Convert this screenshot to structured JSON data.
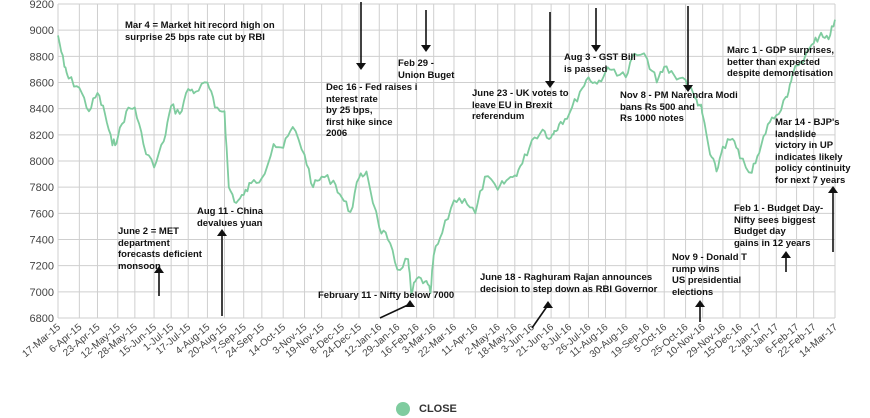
{
  "chart_data": {
    "type": "line",
    "title": "",
    "xlabel": "",
    "ylabel": "",
    "ylim": [
      6800,
      9200
    ],
    "yticks": [
      6800,
      7000,
      7200,
      7400,
      7600,
      7800,
      8000,
      8200,
      8400,
      8600,
      8800,
      9000,
      9200
    ],
    "grid": true,
    "legend_position": "bottom-center",
    "colors": {
      "line": "#7fcc9f",
      "grid": "#cfcfcf",
      "arrow": "#111111"
    },
    "x_tick_labels": [
      "17-Mar-15",
      "6-Apr-15",
      "23-Apr-15",
      "12-May-15",
      "28-May-15",
      "15-Jun-15",
      "1-Jul-15",
      "17-Jul-15",
      "4-Aug-15",
      "20-Aug-15",
      "7-Sep-15",
      "24-Sep-15",
      "14-Oct-15",
      "3-Nov-15",
      "19-Nov-15",
      "8-Dec-15",
      "24-Dec-15",
      "12-Jan-16",
      "29-Jan-16",
      "16-Feb-16",
      "3-Mar-16",
      "22-Mar-16",
      "11-Apr-16",
      "2-May-16",
      "18-May-16",
      "3-Jun-16",
      "21-Jun-16",
      "8-Jul-16",
      "26-Jul-16",
      "11-Aug-16",
      "30-Aug-16",
      "19-Sep-16",
      "5-Oct-16",
      "25-Oct-16",
      "10-Nov-16",
      "29-Nov-16",
      "15-Dec-16",
      "2-Jan-17",
      "18-Jan-17",
      "6-Feb-17",
      "22-Feb-17",
      "14-Mar-17"
    ],
    "series": [
      {
        "name": "CLOSE",
        "x": [
          "17-Mar-15",
          "23-Mar-15",
          "27-Mar-15",
          "6-Apr-15",
          "15-Apr-15",
          "23-Apr-15",
          "30-Apr-15",
          "7-May-15",
          "12-May-15",
          "20-May-15",
          "28-May-15",
          "5-Jun-15",
          "15-Jun-15",
          "24-Jun-15",
          "1-Jul-15",
          "9-Jul-15",
          "17-Jul-15",
          "24-Jul-15",
          "4-Aug-15",
          "11-Aug-15",
          "20-Aug-15",
          "24-Aug-15",
          "31-Aug-15",
          "7-Sep-15",
          "14-Sep-15",
          "24-Sep-15",
          "5-Oct-15",
          "14-Oct-15",
          "23-Oct-15",
          "3-Nov-15",
          "11-Nov-15",
          "19-Nov-15",
          "30-Nov-15",
          "8-Dec-15",
          "16-Dec-15",
          "24-Dec-15",
          "31-Dec-15",
          "12-Jan-16",
          "20-Jan-16",
          "29-Jan-16",
          "8-Feb-16",
          "11-Feb-16",
          "16-Feb-16",
          "24-Feb-16",
          "29-Feb-16",
          "3-Mar-16",
          "11-Mar-16",
          "22-Mar-16",
          "1-Apr-16",
          "11-Apr-16",
          "20-Apr-16",
          "2-May-16",
          "10-May-16",
          "18-May-16",
          "25-May-16",
          "3-Jun-16",
          "13-Jun-16",
          "21-Jun-16",
          "24-Jun-16",
          "30-Jun-16",
          "8-Jul-16",
          "18-Jul-16",
          "26-Jul-16",
          "3-Aug-16",
          "11-Aug-16",
          "19-Aug-16",
          "30-Aug-16",
          "7-Sep-16",
          "19-Sep-16",
          "28-Sep-16",
          "5-Oct-16",
          "14-Oct-16",
          "25-Oct-16",
          "3-Nov-16",
          "8-Nov-16",
          "10-Nov-16",
          "17-Nov-16",
          "23-Nov-16",
          "29-Nov-16",
          "8-Dec-16",
          "15-Dec-16",
          "26-Dec-16",
          "2-Jan-17",
          "10-Jan-17",
          "18-Jan-17",
          "27-Jan-17",
          "1-Feb-17",
          "6-Feb-17",
          "14-Feb-17",
          "22-Feb-17",
          "1-Mar-17",
          "8-Mar-17",
          "14-Mar-17"
        ],
        "values": [
          8960,
          8720,
          8630,
          8560,
          8380,
          8520,
          8360,
          8120,
          8180,
          8380,
          8410,
          8130,
          7950,
          8150,
          8420,
          8360,
          8550,
          8530,
          8600,
          8410,
          8380,
          7800,
          7680,
          7740,
          7830,
          7870,
          8130,
          8100,
          8260,
          8050,
          7800,
          7880,
          7850,
          7720,
          7610,
          7870,
          7920,
          7490,
          7400,
          7170,
          7250,
          6980,
          7100,
          7080,
          6990,
          7280,
          7450,
          7700,
          7710,
          7600,
          7880,
          7780,
          7850,
          7890,
          7980,
          8160,
          8240,
          8180,
          8230,
          8300,
          8360,
          8530,
          8640,
          8590,
          8680,
          8700,
          8640,
          8820,
          8780,
          8600,
          8720,
          8660,
          8620,
          8480,
          8420,
          8350,
          8050,
          7920,
          8110,
          8170,
          8020,
          7910,
          8060,
          8280,
          8350,
          8490,
          8610,
          8730,
          8800,
          8900,
          8980,
          8930,
          9080
        ]
      }
    ],
    "annotations": [
      {
        "text": "Mar 4 = Market hit record high on\nsurprise 25 bps rate cut by RBI",
        "x": "4-Mar-15",
        "y": 9080,
        "arrow": "none"
      },
      {
        "text": "June 2 = MET\ndepartment\nforecasts deficient\nmonsoon",
        "x": "2-Jun-15",
        "y": 8130,
        "arrow": "up"
      },
      {
        "text": "Aug 11 - China\ndevalues yuan",
        "x": "11-Aug-15",
        "y": 8410,
        "arrow": "up"
      },
      {
        "text": "Dec 16 - Fed raises i\nnterest rate\nby 25 bps,\nfirst hike since\n2006",
        "x": "16-Dec-15",
        "y": 7720,
        "arrow": "down"
      },
      {
        "text": "Feb 29 -\nUnion Buget",
        "x": "29-Feb-16",
        "y": 6990,
        "arrow": "down"
      },
      {
        "text": "February 11 - Nifty below 7000",
        "x": "11-Feb-16",
        "y": 6980,
        "arrow": "up"
      },
      {
        "text": "June 23 - UK votes to\nleave EU in Brexit\nreferendum",
        "x": "23-Jun-16",
        "y": 8230,
        "arrow": "down"
      },
      {
        "text": "June 18 - Raghuram Rajan announces\ndecision to step down as RBI Governor",
        "x": "18-Jun-16",
        "y": 8180,
        "arrow": "up"
      },
      {
        "text": "Aug 3 - GST Bill\nis passed",
        "x": "3-Aug-16",
        "y": 8590,
        "arrow": "down"
      },
      {
        "text": "Nov 8 - PM Narendra Modi\nbans Rs 500 and\nRs 1000 notes",
        "x": "8-Nov-16",
        "y": 8420,
        "arrow": "down"
      },
      {
        "text": "Nov 9 - Donald T\nrump wins\nUS presidential\nelections",
        "x": "9-Nov-16",
        "y": 8350,
        "arrow": "up"
      },
      {
        "text": "Marc 1 - GDP surprises,\nbetter than expected\ndespite demonetisation",
        "x": "1-Mar-17",
        "y": 8980,
        "arrow": "none"
      },
      {
        "text": "Mar 14 - BJP's\nlandslide\nvictory in UP\nindicates likely\npolicy continuity\nfor next 7 years",
        "x": "14-Mar-17",
        "y": 9080,
        "arrow": "up"
      },
      {
        "text": "Feb 1 - Budget Day-\nNifty sees biggest\nBudget day\ngains in 12 years",
        "x": "1-Feb-17",
        "y": 8610,
        "arrow": "up"
      }
    ]
  }
}
